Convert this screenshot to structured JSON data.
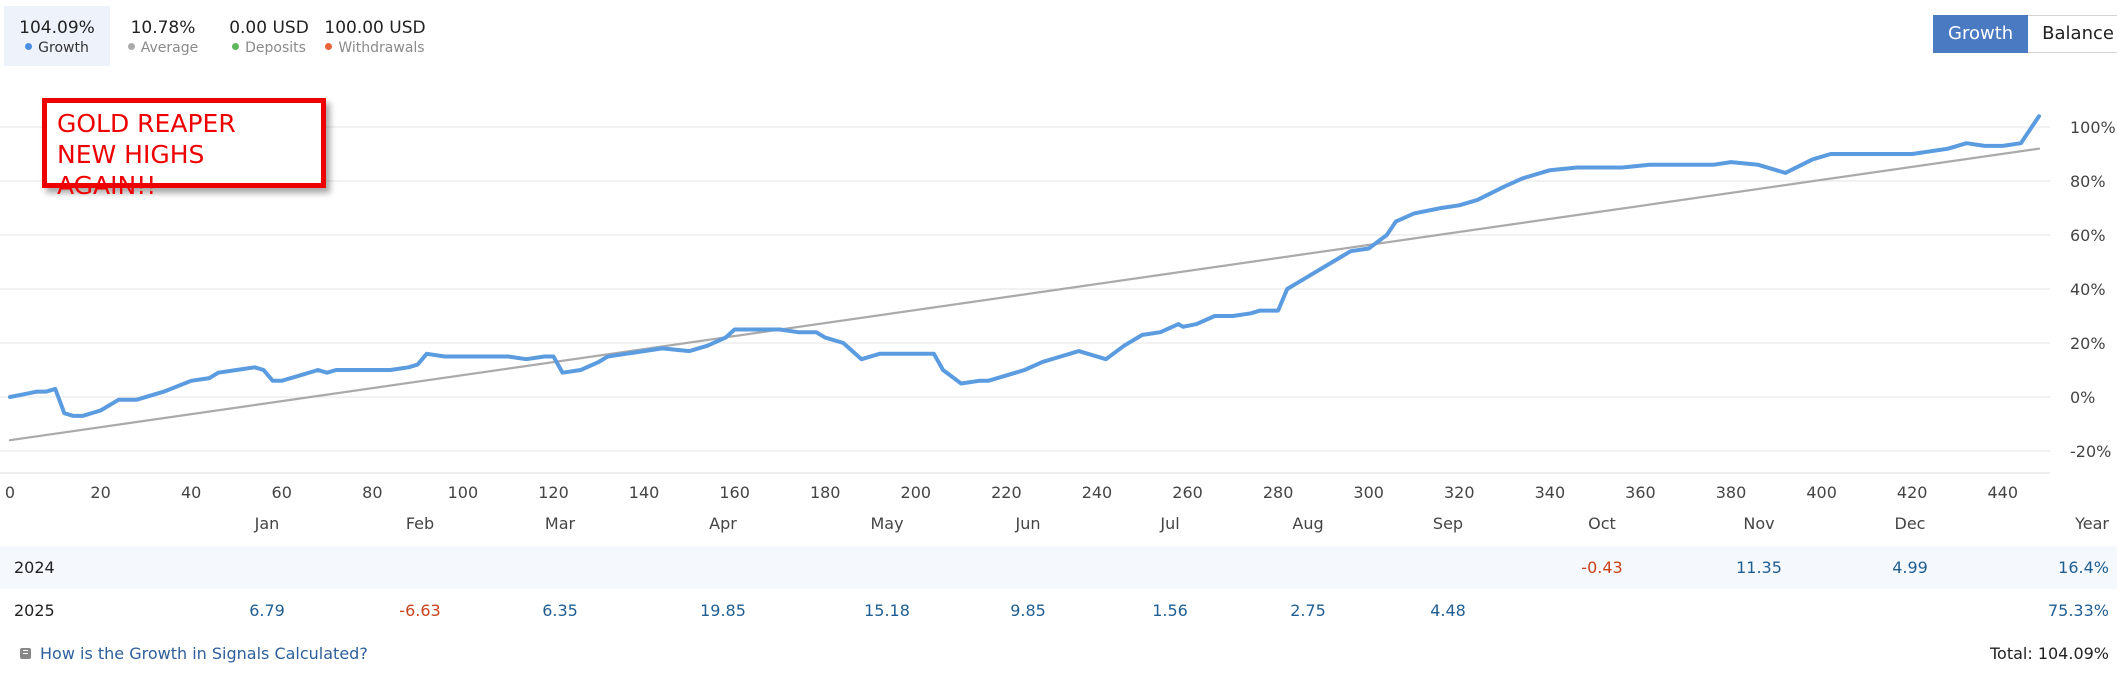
{
  "stats": [
    {
      "value": "104.09%",
      "label": "Growth",
      "color": "#4a90e2",
      "active": true
    },
    {
      "value": "10.78%",
      "label": "Average",
      "color": "#aaaaaa",
      "active": false
    },
    {
      "value": "0.00 USD",
      "label": "Deposits",
      "color": "#5db85c",
      "active": false
    },
    {
      "value": "100.00 USD",
      "label": "Withdrawals",
      "color": "#e8623a",
      "active": false
    }
  ],
  "toggle": {
    "growth_label": "Growth",
    "balance_label": "Balance"
  },
  "annotation": {
    "line1": "GOLD REAPER",
    "line2": "NEW HIGHS AGAIN!!"
  },
  "chart_data": {
    "type": "line",
    "xlim": [
      0,
      448
    ],
    "ylim": [
      -28,
      112
    ],
    "x_ticks": [
      0,
      20,
      40,
      60,
      80,
      100,
      120,
      140,
      160,
      180,
      200,
      220,
      240,
      260,
      280,
      300,
      320,
      340,
      360,
      380,
      400,
      420,
      440
    ],
    "y_ticks": [
      -20,
      0,
      20,
      40,
      60,
      80,
      100
    ],
    "y_tick_suffix": "%",
    "grid": true,
    "series": [
      {
        "color": "#5b9be0",
        "x": [
          0,
          3,
          6,
          8,
          10,
          12,
          14,
          16,
          20,
          24,
          28,
          34,
          40,
          44,
          46,
          50,
          54,
          56,
          58,
          60,
          64,
          68,
          70,
          72,
          74,
          76,
          80,
          84,
          88,
          90,
          92,
          96,
          98,
          100,
          106,
          110,
          114,
          118,
          120,
          122,
          126,
          130,
          132,
          136,
          140,
          144,
          150,
          154,
          158,
          160,
          164,
          170,
          174,
          178,
          180,
          184,
          188,
          192,
          194,
          200,
          204,
          206,
          210,
          214,
          216,
          220,
          224,
          228,
          232,
          236,
          238,
          242,
          246,
          250,
          254,
          258,
          259,
          262,
          266,
          270,
          274,
          276,
          280,
          282,
          286,
          290,
          294,
          296,
          300,
          304,
          306,
          310,
          316,
          320,
          324,
          330,
          334,
          340,
          346,
          352,
          356,
          362,
          370,
          376,
          380,
          386,
          392,
          398,
          402,
          404,
          410,
          416,
          420,
          424,
          428,
          432,
          436,
          440,
          444,
          448
        ],
        "y": [
          0,
          1,
          2,
          2,
          3,
          -6,
          -7,
          -7,
          -5,
          -1,
          -1,
          2,
          6,
          7,
          9,
          10,
          11,
          10,
          6,
          6,
          8,
          10,
          9,
          10,
          10,
          10,
          10,
          10,
          11,
          12,
          16,
          15,
          15,
          15,
          15,
          15,
          14,
          15,
          15,
          9,
          10,
          13,
          15,
          16,
          17,
          18,
          17,
          19,
          22,
          25,
          25,
          25,
          24,
          24,
          22,
          20,
          14,
          16,
          16,
          16,
          16,
          10,
          5,
          6,
          6,
          8,
          10,
          13,
          15,
          17,
          16,
          14,
          19,
          23,
          24,
          27,
          26,
          27,
          30,
          30,
          31,
          32,
          32,
          40,
          44,
          48,
          52,
          54,
          55,
          60,
          65,
          68,
          70,
          71,
          73,
          78,
          81,
          84,
          85,
          85,
          85,
          86,
          86,
          86,
          87,
          86,
          83,
          88,
          90,
          90,
          90,
          90,
          90,
          91,
          92,
          94,
          93,
          93,
          94,
          104
        ]
      },
      {
        "color": "#aaaaaa",
        "x": [
          0,
          448
        ],
        "y": [
          -16,
          92
        ]
      }
    ]
  },
  "table": {
    "months": [
      "Jan",
      "Feb",
      "Mar",
      "Apr",
      "May",
      "Jun",
      "Jul",
      "Aug",
      "Sep",
      "Oct",
      "Nov",
      "Dec"
    ],
    "year_header": "Year",
    "rows": [
      {
        "year": "2024",
        "values": [
          "",
          "",
          "",
          "",
          "",
          "",
          "",
          "",
          "",
          "-0.43",
          "11.35",
          "4.99"
        ],
        "total": "16.4%"
      },
      {
        "year": "2025",
        "values": [
          "6.79",
          "-6.63",
          "6.35",
          "19.85",
          "15.18",
          "9.85",
          "1.56",
          "2.75",
          "4.48",
          "",
          "",
          ""
        ],
        "total": "75.33%"
      }
    ]
  },
  "footer": {
    "help_text": "How is the Growth in Signals Calculated?",
    "total_text": "Total: 104.09%"
  }
}
